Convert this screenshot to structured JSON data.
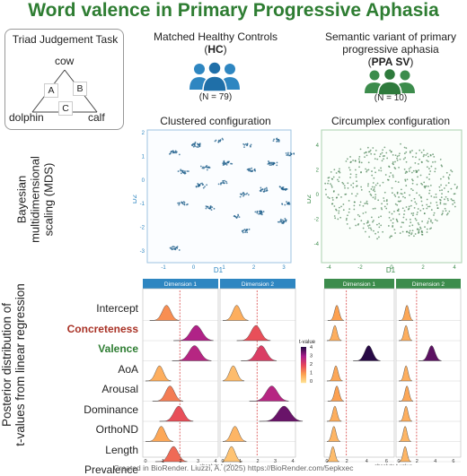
{
  "title": "Word valence in Primary Progressive Aphasia",
  "task": {
    "title": "Triad Judgement Task",
    "words": {
      "top": "cow",
      "left": "dolphin",
      "right": "calf"
    },
    "letters": {
      "a": "A",
      "b": "B",
      "c": "C"
    }
  },
  "groups": {
    "hc": {
      "line1": "Matched Healthy Controls",
      "abbr": "HC",
      "n": "(N = 79)",
      "color": "#2e86c1"
    },
    "ppa": {
      "line1": "Semantic variant of primary",
      "line2": "progressive aphasia",
      "abbr": "PPA SV",
      "n": "(N = 10)",
      "color": "#3c8c4c"
    }
  },
  "mds": {
    "section_label_1": "Bayesian",
    "section_label_2": "multidimensional",
    "section_label_3": "scaling (MDS)",
    "hc": {
      "title": "Clustered configuration",
      "xlabel": "D1",
      "ylabel": "D2",
      "xticks": [
        "-1",
        "0",
        "1",
        "2",
        "3"
      ],
      "yticks": [
        "2",
        "1",
        "0",
        "-1",
        "-2",
        "-3"
      ],
      "color": "#2e86c1"
    },
    "ppa": {
      "title": "Circumplex configuration",
      "xlabel": "D1",
      "ylabel": "D2",
      "xticks": [
        "-4",
        "-2",
        "0",
        "2",
        "4"
      ],
      "yticks": [
        "4",
        "2",
        "0",
        "-2",
        "-4"
      ],
      "color": "#3c8c4c"
    }
  },
  "regression": {
    "section_label_1": "Posterior distribution of",
    "section_label_2": "t-values from linear regression",
    "rows": [
      "Intercept",
      "Concreteness",
      "Valence",
      "AoA",
      "Arousal",
      "Dominance",
      "OrthoND",
      "Length",
      "Prevalence"
    ],
    "dim1": "Dimension 1",
    "dim2": "Dimension 2",
    "xlabel": "absolute t-value",
    "hc_ticks": [
      "0",
      "1",
      "2",
      "3",
      "4"
    ],
    "ppa_ticks": [
      "0",
      "2",
      "4",
      "6"
    ],
    "legend": {
      "title": "t-value",
      "ticks": [
        "4",
        "3",
        "2",
        "1",
        "0"
      ]
    },
    "hc_color": "#2e86c1",
    "ppa_color": "#3c8c4c"
  },
  "footer": "Created in BioRender. Liuzzi, A. (2025) https://BioRender.com/5epkxec"
}
